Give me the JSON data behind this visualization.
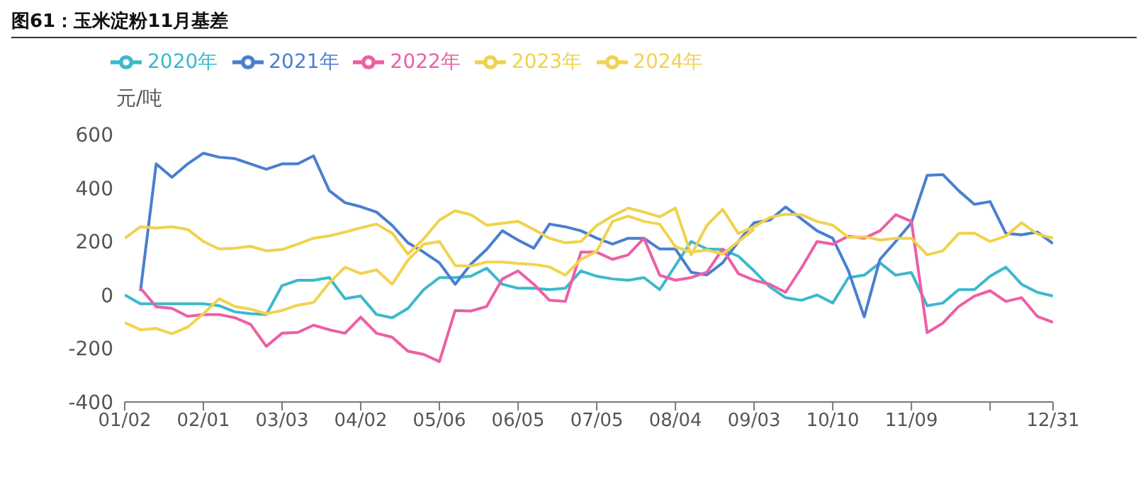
{
  "chart_data": {
    "type": "line",
    "title": "图61：玉米淀粉11月基差",
    "ylabel": "元/吨",
    "categories": [
      "01/02",
      null,
      null,
      null,
      null,
      "02/01",
      null,
      null,
      null,
      null,
      "03/03",
      null,
      null,
      null,
      null,
      "04/02",
      null,
      null,
      null,
      null,
      "05/06",
      null,
      null,
      null,
      null,
      "06/05",
      null,
      null,
      null,
      null,
      "07/05",
      null,
      null,
      null,
      null,
      "08/04",
      null,
      null,
      null,
      null,
      "09/03",
      null,
      null,
      null,
      null,
      "10/10",
      null,
      null,
      null,
      null,
      "11/09",
      null,
      null,
      null,
      null,
      null,
      null,
      null,
      null,
      "12/31"
    ],
    "ylim": [
      -400,
      600
    ],
    "yticks": [
      -400,
      -200,
      0,
      200,
      400,
      600
    ],
    "grid": false,
    "legend": "top left",
    "marker": "none",
    "line_style": "solid",
    "series": [
      {
        "name": "2020年",
        "color": "#3cb9cc",
        "values": [
          0,
          -33,
          -33,
          -33,
          -33,
          -33,
          -40,
          -63,
          -70,
          -73,
          35,
          55,
          55,
          65,
          -14,
          -4,
          -73,
          -85,
          -50,
          20,
          65,
          65,
          70,
          100,
          40,
          25,
          25,
          20,
          25,
          90,
          70,
          60,
          55,
          65,
          20,
          110,
          200,
          172,
          170,
          145,
          90,
          30,
          -10,
          -20,
          0,
          -30,
          65,
          74,
          120,
          74,
          84,
          -40,
          -30,
          20,
          20,
          70,
          104,
          40,
          10,
          -4
        ]
      },
      {
        "name": "2021年",
        "color": "#4a7fd0",
        "values": [
          null,
          15,
          490,
          440,
          490,
          530,
          515,
          510,
          490,
          470,
          490,
          490,
          520,
          390,
          345,
          330,
          310,
          260,
          195,
          160,
          120,
          40,
          115,
          170,
          240,
          205,
          175,
          265,
          255,
          240,
          212,
          190,
          212,
          212,
          172,
          172,
          85,
          75,
          120,
          200,
          270,
          280,
          329,
          285,
          240,
          212,
          90,
          -82,
          133,
          200,
          270,
          447,
          450,
          390,
          339,
          349,
          230,
          225,
          235,
          192
        ]
      },
      {
        "name": "2022年",
        "color": "#ec5fa5",
        "values": [
          null,
          26,
          -44,
          -50,
          -80,
          -73,
          -73,
          -85,
          -110,
          -192,
          -143,
          -140,
          -113,
          -130,
          -143,
          -83,
          -143,
          -158,
          -210,
          -222,
          -249,
          -58,
          -60,
          -43,
          60,
          90,
          40,
          -20,
          -24,
          160,
          160,
          133,
          150,
          212,
          74,
          55,
          65,
          85,
          172,
          80,
          55,
          40,
          10,
          100,
          200,
          190,
          220,
          212,
          240,
          300,
          275,
          -141,
          -105,
          -43,
          -4,
          16,
          -24,
          -10,
          -80,
          -102
        ]
      },
      {
        "name": "2023年",
        "color": "#f0d24c",
        "values": [
          212,
          255,
          250,
          255,
          245,
          200,
          172,
          175,
          182,
          165,
          170,
          190,
          212,
          221,
          235,
          251,
          265,
          231,
          153,
          210,
          280,
          315,
          300,
          261,
          268,
          275,
          245,
          212,
          195,
          200,
          260,
          295,
          325,
          310,
          292,
          325,
          150,
          260,
          320,
          230,
          255,
          290,
          302,
          300,
          275,
          261,
          215,
          218,
          205,
          212,
          212,
          150,
          165,
          230,
          231,
          200,
          220,
          270,
          228,
          212
        ]
      },
      {
        "name": "2024年",
        "color": "#f3d250",
        "values": [
          -103,
          -130,
          -125,
          -145,
          -120,
          -70,
          -14,
          -43,
          -53,
          -70,
          -58,
          -38,
          -28,
          45,
          104,
          80,
          94,
          40,
          130,
          190,
          200,
          110,
          108,
          123,
          123,
          118,
          114,
          105,
          74,
          133,
          163,
          275,
          295,
          275,
          265,
          180,
          160,
          168,
          153,
          200,
          245,
          null,
          null,
          null,
          null,
          null,
          null,
          null,
          null,
          null,
          null,
          null,
          null,
          null,
          null,
          null,
          null,
          null,
          null,
          null
        ]
      }
    ]
  }
}
